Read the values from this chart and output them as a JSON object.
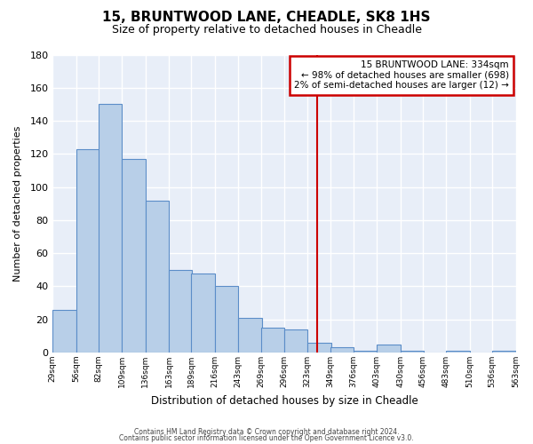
{
  "title": "15, BRUNTWOOD LANE, CHEADLE, SK8 1HS",
  "subtitle": "Size of property relative to detached houses in Cheadle",
  "xlabel": "Distribution of detached houses by size in Cheadle",
  "ylabel": "Number of detached properties",
  "bar_values": [
    26,
    123,
    150,
    117,
    92,
    50,
    48,
    40,
    21,
    15,
    14,
    6,
    3,
    1,
    5,
    1,
    0,
    1,
    0,
    1
  ],
  "bin_edges": [
    29,
    56,
    82,
    109,
    136,
    163,
    189,
    216,
    243,
    269,
    296,
    323,
    349,
    376,
    403,
    430,
    456,
    483,
    510,
    536,
    563
  ],
  "tick_labels": [
    "29sqm",
    "56sqm",
    "82sqm",
    "109sqm",
    "136sqm",
    "163sqm",
    "189sqm",
    "216sqm",
    "243sqm",
    "269sqm",
    "296sqm",
    "323sqm",
    "349sqm",
    "376sqm",
    "403sqm",
    "430sqm",
    "456sqm",
    "483sqm",
    "510sqm",
    "536sqm",
    "563sqm"
  ],
  "bar_color": "#b8cfe8",
  "bar_edge_color": "#5b8dc8",
  "vline_x": 334,
  "vline_color": "#cc0000",
  "annotation_title": "15 BRUNTWOOD LANE: 334sqm",
  "annotation_line1": "← 98% of detached houses are smaller (698)",
  "annotation_line2": "2% of semi-detached houses are larger (12) →",
  "annotation_box_color": "#cc0000",
  "ylim": [
    0,
    180
  ],
  "yticks": [
    0,
    20,
    40,
    60,
    80,
    100,
    120,
    140,
    160,
    180
  ],
  "bg_color": "#e8eef8",
  "footer1": "Contains HM Land Registry data © Crown copyright and database right 2024.",
  "footer2": "Contains public sector information licensed under the Open Government Licence v3.0."
}
